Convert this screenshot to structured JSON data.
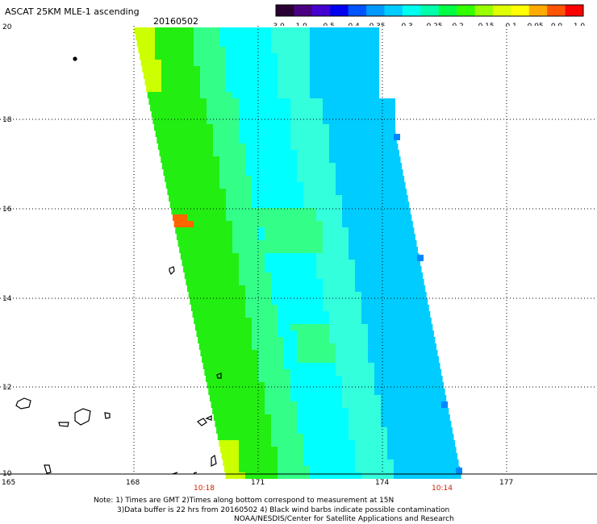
{
  "header": {
    "title": "ASCAT 25KM MLE-1 ascending",
    "date": "20160502"
  },
  "colorbar": {
    "ticks": [
      "-3.0",
      "-1.0",
      "-0.5",
      "-0.4",
      "-0.35",
      "-0.3",
      "-0.25",
      "-0.2",
      "-0.15",
      "-0.1",
      "-0.05",
      "0.0",
      "1.0"
    ],
    "colors": [
      "#2a0033",
      "#4a0080",
      "#4400cc",
      "#0000ee",
      "#0055ff",
      "#0099ff",
      "#00ccff",
      "#00ffee",
      "#00ffaa",
      "#00ff44",
      "#33ff00",
      "#99ff00",
      "#ddff00",
      "#ffff00",
      "#ffaa00",
      "#ff5500",
      "#ff0000"
    ]
  },
  "map": {
    "lat_labels": [
      "20",
      "18",
      "16",
      "14",
      "12",
      "10"
    ],
    "lon_labels": [
      "165",
      "168",
      "171",
      "174",
      "177"
    ],
    "time_labels": [
      "10:18",
      "10:14"
    ],
    "swath_colors": {
      "green": "#22ee11",
      "light_green": "#33ff88",
      "cyan": "#33ffdd",
      "light_cyan": "#00ffff",
      "blue": "#00ccff",
      "deep_blue": "#0088ff",
      "yellow": "#ccff00",
      "orange": "#ff6600"
    }
  },
  "footer": {
    "note1": "Note: 1) Times are GMT 2)Times along bottom correspond to measurement at 15N",
    "note2": "3)Data buffer is 22 hrs from 20160502 4) Black wind barbs indicate possible contamination",
    "credit": "NOAA/NESDIS/Center for Satellite Applications and Research"
  }
}
